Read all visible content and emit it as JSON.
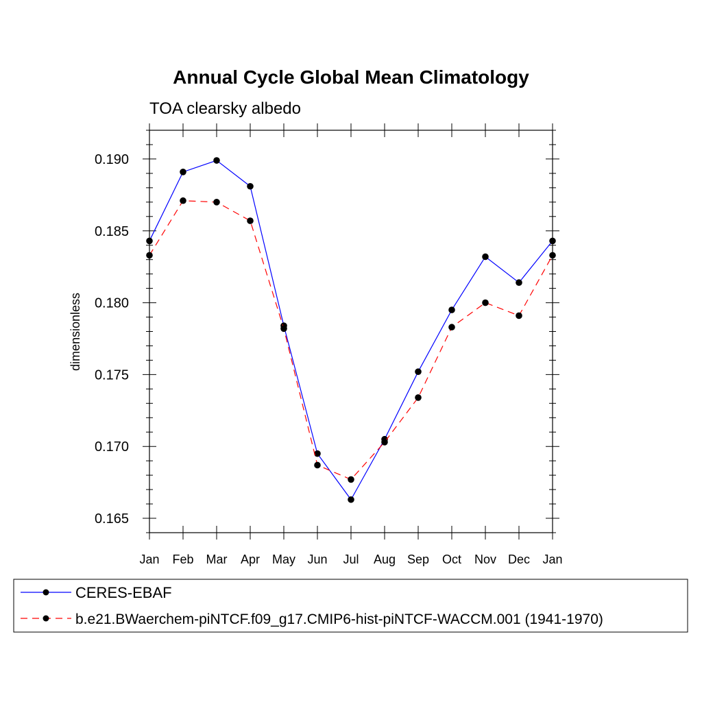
{
  "chart_data": {
    "type": "line",
    "title": "Annual Cycle Global Mean Climatology",
    "subtitle": "TOA clearsky albedo",
    "xlabel": "",
    "ylabel": "dimensionless",
    "categories": [
      "Jan",
      "Feb",
      "Mar",
      "Apr",
      "May",
      "Jun",
      "Jul",
      "Aug",
      "Sep",
      "Oct",
      "Nov",
      "Dec",
      "Jan"
    ],
    "ylim": [
      0.164,
      0.192
    ],
    "yticks": [
      "0.165",
      "0.170",
      "0.175",
      "0.180",
      "0.185",
      "0.190"
    ],
    "grid": false,
    "legend_position": "bottom",
    "series": [
      {
        "name": "CERES-EBAF",
        "color": "#0000ff",
        "line_style": "solid",
        "marker": "filled-circle",
        "values": [
          0.1843,
          0.1891,
          0.1899,
          0.1881,
          0.1784,
          0.1695,
          0.1663,
          0.1705,
          0.1752,
          0.1795,
          0.1832,
          0.1814,
          0.1843
        ]
      },
      {
        "name": "b.e21.BWaerchem-piNTCF.f09_g17.CMIP6-hist-piNTCF-WACCM.001 (1941-1970)",
        "color": "#ff0000",
        "line_style": "dashed",
        "marker": "filled-circle",
        "values": [
          0.1833,
          0.1871,
          0.187,
          0.1857,
          0.1782,
          0.1687,
          0.1677,
          0.1703,
          0.1734,
          0.1783,
          0.18,
          0.1791,
          0.1833
        ]
      }
    ]
  }
}
